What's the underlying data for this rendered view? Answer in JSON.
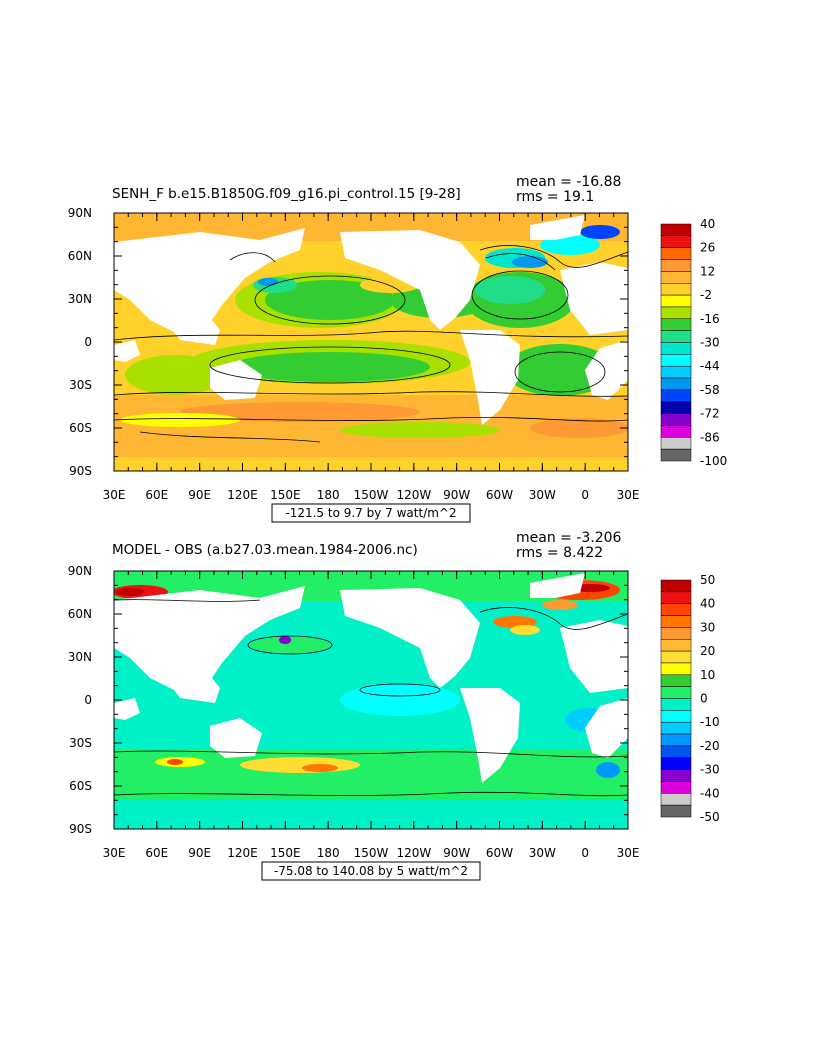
{
  "panels": [
    {
      "id": "top",
      "title": "SENH_F b.e15.B1850G.f09_g16.pi_control.15 [9-28]",
      "mean": "mean = -16.88",
      "rms": "rms = 19.1",
      "range_note": "-121.5 to 9.7 by 7 watt/m^2",
      "colorbar": {
        "labels": [
          "40",
          "26",
          "12",
          "-2",
          "-16",
          "-30",
          "-44",
          "-58",
          "-72",
          "-86",
          "-100"
        ],
        "colors": [
          "#c00000",
          "#ee1111",
          "#ff6a00",
          "#ff9933",
          "#ffb733",
          "#ffd12a",
          "#ffff00",
          "#a8e000",
          "#33cc33",
          "#22dd88",
          "#00e6cc",
          "#00ffff",
          "#00ccff",
          "#0099ee",
          "#0044ff",
          "#0000aa",
          "#8800cc",
          "#dd00dd",
          "#cccccc",
          "#666666"
        ]
      }
    },
    {
      "id": "bottom",
      "title": "MODEL - OBS (a.b27.03.mean.1984-2006.nc)",
      "mean": "mean = -3.206",
      "rms": "rms = 8.422",
      "range_note": "-75.08 to 140.08 by 5 watt/m^2",
      "colorbar": {
        "labels": [
          "50",
          "40",
          "30",
          "20",
          "10",
          "0",
          "-10",
          "-20",
          "-30",
          "-40",
          "-50"
        ],
        "colors": [
          "#c00000",
          "#ee1111",
          "#ff4400",
          "#ff7700",
          "#ff9933",
          "#ffbb33",
          "#ffdd33",
          "#ffff00",
          "#33cc33",
          "#22ee66",
          "#00f0c8",
          "#00ffff",
          "#00ccff",
          "#0099ff",
          "#0055ee",
          "#0000ff",
          "#8800cc",
          "#dd00dd",
          "#cccccc",
          "#666666"
        ]
      }
    }
  ],
  "axes": {
    "lat_labels": [
      "90N",
      "60N",
      "30N",
      "0",
      "30S",
      "60S",
      "90S"
    ],
    "lon_labels": [
      "30E",
      "60E",
      "90E",
      "120E",
      "150E",
      "180",
      "150W",
      "120W",
      "90W",
      "60W",
      "30W",
      "0",
      "30E"
    ]
  },
  "colors": {
    "land": "#ffffff",
    "contour": "#000000"
  }
}
